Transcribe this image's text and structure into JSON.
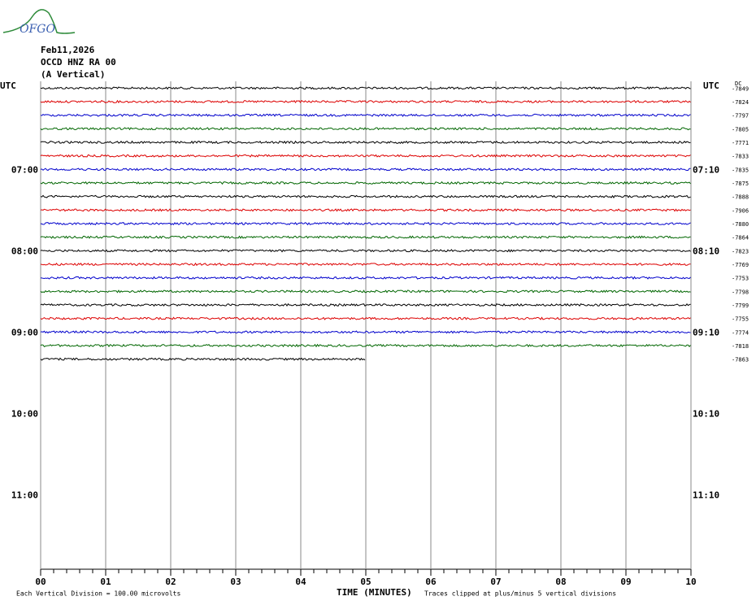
{
  "chart_data": {
    "type": "helicorder",
    "logo": "OFGO",
    "title": [
      "Feb11,2026",
      "OCCD HNZ RA 00",
      "(A Vertical)"
    ],
    "y_header": "UTC",
    "y2_header": "UTC",
    "offset_header": "DC",
    "x_label": "TIME (MINUTES)",
    "scale_note": "Each Vertical Division =  100.00 microvolts",
    "clip_note": "Traces clipped at plus/minus 5 vertical divisions",
    "xlim": [
      0,
      10
    ],
    "xticks": [
      {
        "value": 0,
        "label": "00"
      },
      {
        "value": 1,
        "label": "01"
      },
      {
        "value": 2,
        "label": "02"
      },
      {
        "value": 3,
        "label": "03"
      },
      {
        "value": 4,
        "label": "04"
      },
      {
        "value": 5,
        "label": "05"
      },
      {
        "value": 6,
        "label": "06"
      },
      {
        "value": 7,
        "label": "07"
      },
      {
        "value": 8,
        "label": "08"
      },
      {
        "value": 9,
        "label": "09"
      },
      {
        "value": 10,
        "label": "10"
      }
    ],
    "x_minor_ticks": [
      0.2,
      0.4,
      0.6,
      0.8,
      1.2,
      1.4,
      1.6,
      1.8,
      2.2,
      2.4,
      2.6,
      2.8,
      3.2,
      3.4,
      3.6,
      3.8,
      4.2,
      4.4,
      4.6,
      4.8,
      5.2,
      5.4,
      5.6,
      5.8,
      6.2,
      6.4,
      6.6,
      6.8,
      7.2,
      7.4,
      7.6,
      7.8,
      8.2,
      8.4,
      8.6,
      8.8,
      9.2,
      9.4,
      9.6,
      9.8
    ],
    "ylim": [
      6,
      12
    ],
    "yticks": [
      {
        "value": 7,
        "label": "07:00"
      },
      {
        "value": 8,
        "label": "08:00"
      },
      {
        "value": 9,
        "label": "09:00"
      },
      {
        "value": 10,
        "label": "10:00"
      },
      {
        "value": 11,
        "label": "11:00"
      }
    ],
    "y2ticks": [
      {
        "value": 7,
        "label": "07:10"
      },
      {
        "value": 8,
        "label": "08:10"
      },
      {
        "value": 9,
        "label": "09:10"
      },
      {
        "value": 10,
        "label": "10:10"
      },
      {
        "value": 11,
        "label": "11:10"
      }
    ],
    "grid": true,
    "series": [
      {
        "color": "#000000",
        "dc_offset": -7849,
        "x": [
          0,
          10
        ]
      },
      {
        "color": "#dd0000",
        "dc_offset": -7824,
        "x": [
          0,
          10
        ]
      },
      {
        "color": "#0000cc",
        "dc_offset": -7797,
        "x": [
          0,
          10
        ]
      },
      {
        "color": "#006600",
        "dc_offset": -7805,
        "x": [
          0,
          10
        ]
      },
      {
        "color": "#000000",
        "dc_offset": -7771,
        "x": [
          0,
          10
        ]
      },
      {
        "color": "#dd0000",
        "dc_offset": -7833,
        "x": [
          0,
          10
        ]
      },
      {
        "color": "#0000cc",
        "dc_offset": -7835,
        "x": [
          0,
          10
        ]
      },
      {
        "color": "#006600",
        "dc_offset": -7875,
        "x": [
          0,
          10
        ]
      },
      {
        "color": "#000000",
        "dc_offset": -7888,
        "x": [
          0,
          10
        ]
      },
      {
        "color": "#dd0000",
        "dc_offset": -7906,
        "x": [
          0,
          10
        ]
      },
      {
        "color": "#0000cc",
        "dc_offset": -7880,
        "x": [
          0,
          10
        ]
      },
      {
        "color": "#006600",
        "dc_offset": -7864,
        "x": [
          0,
          10
        ]
      },
      {
        "color": "#000000",
        "dc_offset": -7823,
        "x": [
          0,
          10
        ]
      },
      {
        "color": "#dd0000",
        "dc_offset": -7769,
        "x": [
          0,
          10
        ]
      },
      {
        "color": "#0000cc",
        "dc_offset": -7753,
        "x": [
          0,
          10
        ]
      },
      {
        "color": "#006600",
        "dc_offset": -7798,
        "x": [
          0,
          10
        ]
      },
      {
        "color": "#000000",
        "dc_offset": -7799,
        "x": [
          0,
          10
        ]
      },
      {
        "color": "#dd0000",
        "dc_offset": -7755,
        "x": [
          0,
          10
        ]
      },
      {
        "color": "#0000cc",
        "dc_offset": -7774,
        "x": [
          0,
          10
        ]
      },
      {
        "color": "#006600",
        "dc_offset": -7818,
        "x": [
          0,
          10
        ]
      },
      {
        "color": "#000000",
        "dc_offset": -7863,
        "x": [
          0,
          5
        ]
      }
    ]
  }
}
